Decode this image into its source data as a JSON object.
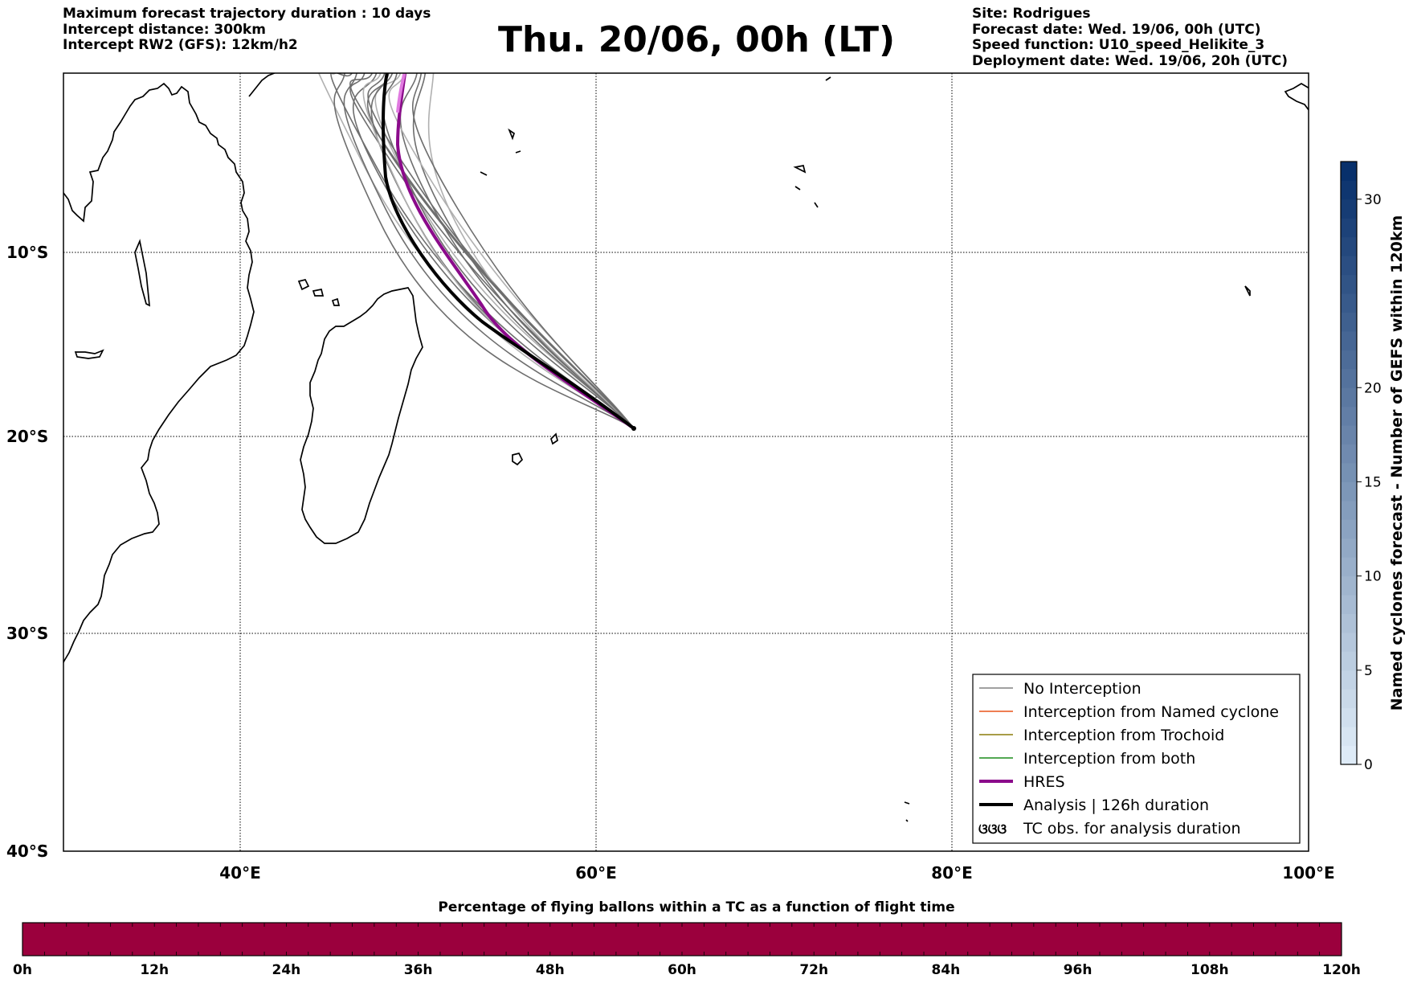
{
  "header": {
    "left_lines": [
      "Maximum forecast trajectory duration : 10 days",
      "Intercept distance: 300km",
      "Intercept RW2 (GFS):  12km/h2"
    ],
    "title": "Thu. 20/06, 00h (LT)",
    "right_lines": [
      "Site: Rodrigues",
      "Forecast date: Wed. 19/06, 00h (UTC)",
      "Speed function: U10_speed_Helikite_3",
      "Deployment date: Wed. 19/06, 20h (UTC)"
    ]
  },
  "map": {
    "lat_labels": [
      "10°S",
      "20°S",
      "30°S",
      "40°S"
    ],
    "lon_labels": [
      "40°E",
      "60°E",
      "80°E",
      "100°E"
    ],
    "extent": {
      "lon_min": 30,
      "lon_max": 100,
      "lat_top": -0.3,
      "lat_bottom": -40
    },
    "deployment_site": {
      "name": "Rodrigues",
      "lon": 63.4,
      "lat": -19.7
    },
    "colors": {
      "no_interception": "#6e6e6e",
      "hres": "#8b0a8b",
      "analysis": "#000000"
    }
  },
  "legend": {
    "items": [
      {
        "label": "No Interception",
        "color": "#808080"
      },
      {
        "label": "Interception from Named cyclone",
        "color": "#e8541a"
      },
      {
        "label": "Interception from Trochoid",
        "color": "#8b7d0a"
      },
      {
        "label": "Interception from both",
        "color": "#1a8c1a"
      },
      {
        "label": "HRES",
        "color": "#8b0a8b"
      },
      {
        "label": "Analysis | 126h duration",
        "color": "#000000"
      },
      {
        "label": "TC obs. for analysis duration",
        "symbol": "ଓଓଓ"
      }
    ]
  },
  "right_colorbar": {
    "label": "Named cyclones forecast - Number of GEFS within 120km",
    "ticks": [
      "0",
      "5",
      "10",
      "15",
      "20",
      "30"
    ],
    "min": 0,
    "max": 32
  },
  "bottom_colorbar": {
    "title": "Percentage of flying ballons within a TC as a function of flight time",
    "ticks": [
      "0h",
      "12h",
      "24h",
      "36h",
      "48h",
      "60h",
      "72h",
      "84h",
      "96h",
      "108h",
      "120h"
    ],
    "fill_color": "#9b003d"
  }
}
